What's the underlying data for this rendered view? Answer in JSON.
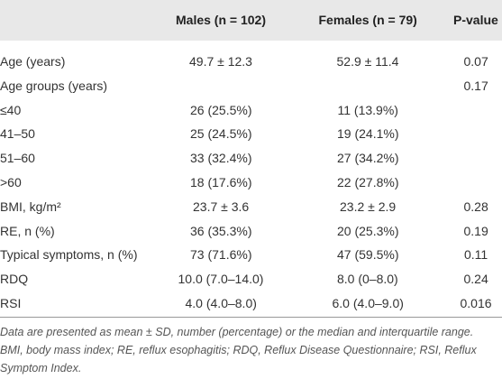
{
  "table": {
    "header": [
      "Males (n = 102)",
      "Females (n = 79)",
      "P-value"
    ],
    "rows": [
      [
        "Age (years)",
        "49.7 ± 12.3",
        "52.9 ± 11.4",
        "0.07"
      ],
      [
        "Age groups (years)",
        null,
        null,
        "0.17"
      ],
      [
        "≤40",
        "26 (25.5%)",
        "11 (13.9%)",
        null
      ],
      [
        "41–50",
        "25 (24.5%)",
        "19 (24.1%)",
        null
      ],
      [
        "51–60",
        "33 (32.4%)",
        "27 (34.2%)",
        null
      ],
      [
        ">60",
        "18 (17.6%)",
        "22 (27.8%)",
        null
      ],
      [
        "BMI, kg/m²",
        "23.7 ± 3.6",
        "23.2 ± 2.9",
        "0.28"
      ],
      [
        "RE, n (%)",
        "36 (35.3%)",
        "20 (25.3%)",
        "0.19"
      ],
      [
        "Typical symptoms, n (%)",
        "73 (71.6%)",
        "47 (59.5%)",
        "0.11"
      ],
      [
        "RDQ",
        "10.0 (7.0–14.0)",
        "8.0 (0–8.0)",
        "0.24"
      ],
      [
        "RSI",
        "4.0 (4.0–8.0)",
        "6.0 (4.0–9.0)",
        "0.016"
      ]
    ],
    "footnote": "Data are presented as mean ± SD, number (percentage) or the median and interquartile range. BMI, body mass index; RE, reflux esophagitis; RDQ, Reflux Disease Questionnaire; RSI, Reflux Symptom Index."
  }
}
